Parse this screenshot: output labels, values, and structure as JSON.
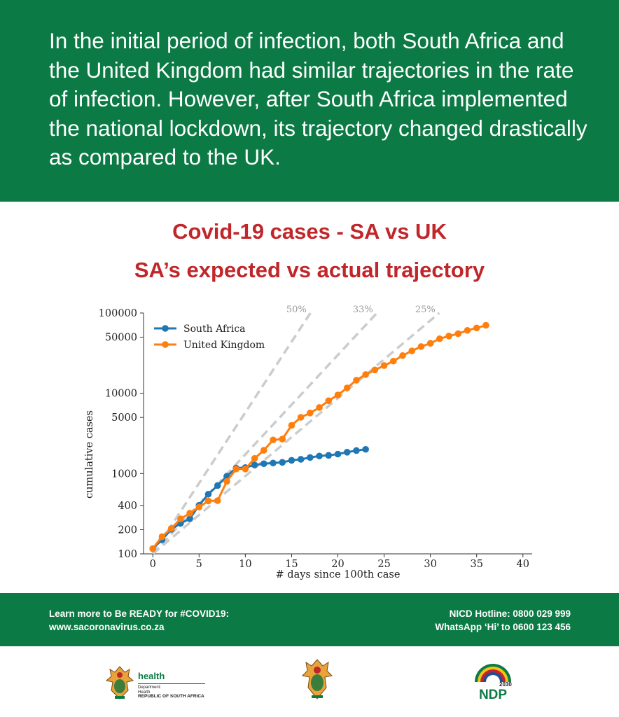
{
  "banner": {
    "text": "In the initial period of infection, both South Africa and the United Kingdom had similar trajectories in the rate of infection. However, after South Africa implemented the national lockdown, its trajectory changed drastically as compared to the UK."
  },
  "chart_titles": {
    "line1": "Covid-19 cases - SA vs UK",
    "line2": "SA’s expected vs actual trajectory"
  },
  "chart_data": {
    "type": "line",
    "xlabel": "# days since 100th case",
    "ylabel": "cumulative cases",
    "xlim": [
      -1,
      41
    ],
    "ylim": [
      100,
      100000
    ],
    "yscale": "log",
    "x_ticks": [
      0,
      5,
      10,
      15,
      20,
      25,
      30,
      35,
      40
    ],
    "y_ticks": [
      100,
      200,
      400,
      1000,
      5000,
      10000,
      50000,
      100000
    ],
    "legend_position": "upper-left",
    "series": [
      {
        "name": "South Africa",
        "color": "#1f77b4",
        "x": [
          0,
          1,
          2,
          3,
          4,
          5,
          6,
          7,
          8,
          9,
          10,
          11,
          12,
          13,
          14,
          15,
          16,
          17,
          18,
          19,
          20,
          21,
          22,
          23
        ],
        "y": [
          116,
          150,
          202,
          240,
          274,
          402,
          554,
          709,
          927,
          1170,
          1187,
          1280,
          1326,
          1353,
          1380,
          1462,
          1505,
          1585,
          1655,
          1686,
          1749,
          1845,
          1934,
          2003
        ]
      },
      {
        "name": "United Kingdom",
        "color": "#ff7f0e",
        "x": [
          0,
          1,
          2,
          3,
          4,
          5,
          6,
          7,
          8,
          9,
          10,
          11,
          12,
          13,
          14,
          15,
          16,
          17,
          18,
          19,
          20,
          21,
          22,
          23,
          24,
          25,
          26,
          27,
          28,
          29,
          30,
          31,
          32,
          33,
          34,
          35,
          36
        ],
        "y": [
          116,
          164,
          207,
          273,
          321,
          382,
          456,
          460,
          798,
          1140,
          1140,
          1543,
          1950,
          2626,
          2689,
          3983,
          5018,
          5683,
          6650,
          8077,
          9529,
          11658,
          14543,
          17089,
          19522,
          22141,
          25150,
          29474,
          33718,
          38168,
          41903,
          47806,
          51608,
          55242,
          60733,
          65077,
          70272
        ]
      },
      {
        "name": "25%",
        "reference": true,
        "growth_rate": 0.25,
        "label": "25%"
      },
      {
        "name": "33%",
        "reference": true,
        "growth_rate": 0.33,
        "label": "33%"
      },
      {
        "name": "50%",
        "reference": true,
        "growth_rate": 0.5,
        "label": "50%"
      }
    ]
  },
  "footer": {
    "left_line1": "Learn more to Be READY for #COVID19:",
    "left_line2": "www.sacoronavirus.co.za",
    "right_line1": "NICD Hotline: 0800 029 999",
    "right_line2": "WhatsApp ‘Hi’ to 0600 123 456"
  },
  "logos": {
    "health_word": "health",
    "health_dept": "Department:",
    "health_dept2": "Health",
    "health_country": "REPUBLIC OF SOUTH AFRICA",
    "ndp_year": "2030",
    "ndp_text": "NDP"
  },
  "colors": {
    "brand_green": "#0c7a45",
    "title_red": "#c0262a",
    "reference_line": "#cccccc"
  }
}
